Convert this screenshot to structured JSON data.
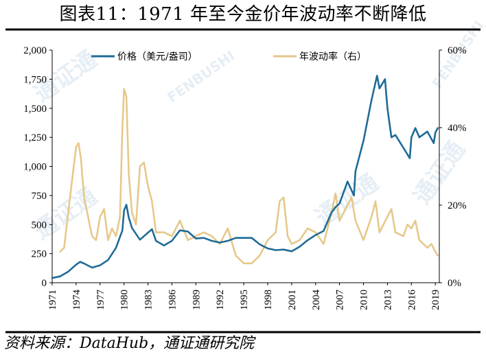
{
  "title": "图表11：1971 年至今金价年波动率不断降低",
  "source": "资料来源：DataHub，通证通研究院",
  "colors": {
    "price": "#1f6b96",
    "volatility": "#e6c88a",
    "rule": "#000000"
  },
  "chart_data": {
    "type": "line",
    "x_ticks": [
      "1971",
      "1974",
      "1977",
      "1980",
      "1983",
      "1986",
      "1989",
      "1992",
      "1995",
      "1998",
      "2001",
      "2004",
      "2007",
      "2010",
      "2013",
      "2016",
      "2019"
    ],
    "xlim": [
      1971,
      2019.5
    ],
    "y_left": {
      "ticks": [
        "0",
        "250",
        "500",
        "750",
        "1,000",
        "1,250",
        "1,500",
        "1,750",
        "2,000"
      ],
      "ylim": [
        0,
        2000
      ]
    },
    "y_right": {
      "ticks": [
        "0%",
        "20%",
        "40%",
        "60%"
      ],
      "ylim": [
        0,
        60
      ]
    },
    "legend_position": "top",
    "series": [
      {
        "name": "价格（美元/盎司）",
        "axis": "left",
        "color": "#1f6b96",
        "points": [
          [
            1971,
            40
          ],
          [
            1972,
            55
          ],
          [
            1973,
            95
          ],
          [
            1974,
            155
          ],
          [
            1974.5,
            180
          ],
          [
            1975,
            165
          ],
          [
            1976,
            130
          ],
          [
            1977,
            150
          ],
          [
            1978,
            195
          ],
          [
            1979,
            300
          ],
          [
            1979.8,
            450
          ],
          [
            1980,
            620
          ],
          [
            1980.3,
            670
          ],
          [
            1980.6,
            560
          ],
          [
            1981,
            470
          ],
          [
            1982,
            370
          ],
          [
            1983,
            430
          ],
          [
            1983.5,
            460
          ],
          [
            1984,
            360
          ],
          [
            1985,
            320
          ],
          [
            1986,
            360
          ],
          [
            1987,
            450
          ],
          [
            1988,
            440
          ],
          [
            1989,
            380
          ],
          [
            1990,
            385
          ],
          [
            1991,
            360
          ],
          [
            1992,
            345
          ],
          [
            1993,
            360
          ],
          [
            1994,
            385
          ],
          [
            1995,
            385
          ],
          [
            1996,
            385
          ],
          [
            1997,
            330
          ],
          [
            1998,
            295
          ],
          [
            1999,
            280
          ],
          [
            2000,
            285
          ],
          [
            2001,
            270
          ],
          [
            2002,
            310
          ],
          [
            2003,
            365
          ],
          [
            2004,
            410
          ],
          [
            2005,
            445
          ],
          [
            2006,
            605
          ],
          [
            2006.5,
            650
          ],
          [
            2007,
            680
          ],
          [
            2008,
            870
          ],
          [
            2008.8,
            750
          ],
          [
            2009,
            960
          ],
          [
            2010,
            1220
          ],
          [
            2011,
            1570
          ],
          [
            2011.7,
            1780
          ],
          [
            2012,
            1670
          ],
          [
            2012.7,
            1750
          ],
          [
            2013,
            1500
          ],
          [
            2013.5,
            1250
          ],
          [
            2014,
            1270
          ],
          [
            2015,
            1160
          ],
          [
            2015.8,
            1070
          ],
          [
            2016,
            1250
          ],
          [
            2016.5,
            1330
          ],
          [
            2017,
            1250
          ],
          [
            2018,
            1300
          ],
          [
            2018.8,
            1200
          ],
          [
            2019,
            1290
          ],
          [
            2019.3,
            1330
          ]
        ]
      },
      {
        "name": "年波动率（右）",
        "axis": "right",
        "color": "#e6c88a",
        "points": [
          [
            1972,
            8
          ],
          [
            1972.5,
            9
          ],
          [
            1973,
            18
          ],
          [
            1973.7,
            30
          ],
          [
            1974,
            35
          ],
          [
            1974.3,
            36
          ],
          [
            1974.6,
            32
          ],
          [
            1975,
            22
          ],
          [
            1975.5,
            17
          ],
          [
            1976,
            12
          ],
          [
            1976.5,
            11
          ],
          [
            1977,
            17
          ],
          [
            1977.5,
            19
          ],
          [
            1978,
            11
          ],
          [
            1978.5,
            14
          ],
          [
            1979,
            12
          ],
          [
            1979.5,
            17
          ],
          [
            1979.8,
            40
          ],
          [
            1980,
            50
          ],
          [
            1980.3,
            48
          ],
          [
            1980.6,
            28
          ],
          [
            1981,
            18
          ],
          [
            1981.5,
            15
          ],
          [
            1982,
            30
          ],
          [
            1982.5,
            31
          ],
          [
            1983,
            25
          ],
          [
            1983.5,
            21
          ],
          [
            1984,
            13
          ],
          [
            1985,
            13
          ],
          [
            1986,
            12
          ],
          [
            1986.5,
            14
          ],
          [
            1987,
            16
          ],
          [
            1988,
            11
          ],
          [
            1989,
            12
          ],
          [
            1990,
            13
          ],
          [
            1991,
            12
          ],
          [
            1992,
            10
          ],
          [
            1993,
            14
          ],
          [
            1994,
            7
          ],
          [
            1995,
            5
          ],
          [
            1996,
            5
          ],
          [
            1997,
            7
          ],
          [
            1998,
            11
          ],
          [
            1999,
            13
          ],
          [
            1999.5,
            21
          ],
          [
            2000,
            22
          ],
          [
            2000.5,
            12
          ],
          [
            2001,
            10
          ],
          [
            2002,
            11
          ],
          [
            2003,
            14
          ],
          [
            2004,
            13
          ],
          [
            2005,
            10
          ],
          [
            2006,
            18
          ],
          [
            2006.5,
            23
          ],
          [
            2007,
            16
          ],
          [
            2008,
            20
          ],
          [
            2008.5,
            22
          ],
          [
            2009,
            16
          ],
          [
            2010,
            11
          ],
          [
            2011,
            17
          ],
          [
            2011.5,
            21
          ],
          [
            2012,
            13
          ],
          [
            2013,
            17
          ],
          [
            2013.5,
            19
          ],
          [
            2014,
            13
          ],
          [
            2015,
            12
          ],
          [
            2015.5,
            15
          ],
          [
            2016,
            14
          ],
          [
            2016.5,
            16
          ],
          [
            2017,
            11
          ],
          [
            2018,
            9
          ],
          [
            2018.5,
            10
          ],
          [
            2019,
            8
          ],
          [
            2019.3,
            7
          ]
        ]
      }
    ]
  }
}
